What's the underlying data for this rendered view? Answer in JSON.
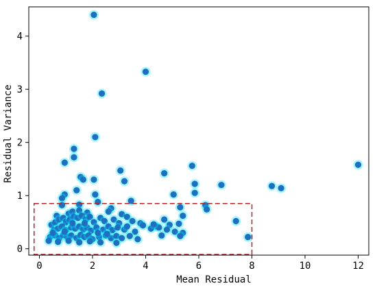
{
  "chart_data": {
    "type": "scatter",
    "xlabel": "Mean Residual",
    "ylabel": "Residual Variance",
    "xlim": [
      -0.4,
      12.4
    ],
    "ylim": [
      -0.12,
      4.55
    ],
    "xticks": [
      0,
      2,
      4,
      6,
      8,
      10,
      12
    ],
    "yticks": [
      0,
      1,
      2,
      3,
      4
    ],
    "grid": false,
    "marker_color": "#1f6fbf",
    "highlight_color": "#00e5ff",
    "region_color": "#b22222",
    "highlight_region": {
      "x": [
        -0.2,
        8.0
      ],
      "y": [
        -0.12,
        0.85
      ],
      "style": "dashed"
    },
    "points": [
      {
        "x": 2.05,
        "y": 4.4
      },
      {
        "x": 4.0,
        "y": 3.33
      },
      {
        "x": 2.35,
        "y": 2.92
      },
      {
        "x": 2.1,
        "y": 2.1
      },
      {
        "x": 1.3,
        "y": 1.88
      },
      {
        "x": 1.3,
        "y": 1.72
      },
      {
        "x": 0.95,
        "y": 1.62
      },
      {
        "x": 12.0,
        "y": 1.58
      },
      {
        "x": 5.75,
        "y": 1.56
      },
      {
        "x": 3.05,
        "y": 1.47
      },
      {
        "x": 4.7,
        "y": 1.42
      },
      {
        "x": 1.55,
        "y": 1.35
      },
      {
        "x": 1.65,
        "y": 1.3
      },
      {
        "x": 2.05,
        "y": 1.3
      },
      {
        "x": 3.2,
        "y": 1.27
      },
      {
        "x": 5.85,
        "y": 1.22
      },
      {
        "x": 6.85,
        "y": 1.2
      },
      {
        "x": 8.75,
        "y": 1.18
      },
      {
        "x": 9.1,
        "y": 1.14
      },
      {
        "x": 1.4,
        "y": 1.1
      },
      {
        "x": 5.85,
        "y": 1.05
      },
      {
        "x": 0.95,
        "y": 1.02
      },
      {
        "x": 2.1,
        "y": 1.02
      },
      {
        "x": 5.05,
        "y": 1.02
      },
      {
        "x": 0.85,
        "y": 0.95
      },
      {
        "x": 3.45,
        "y": 0.9
      },
      {
        "x": 2.2,
        "y": 0.88
      },
      {
        "x": 6.25,
        "y": 0.82
      },
      {
        "x": 1.5,
        "y": 0.83
      },
      {
        "x": 0.85,
        "y": 0.82
      },
      {
        "x": 5.3,
        "y": 0.78
      },
      {
        "x": 2.7,
        "y": 0.76
      },
      {
        "x": 6.3,
        "y": 0.74
      },
      {
        "x": 0.65,
        "y": 0.62
      },
      {
        "x": 1.1,
        "y": 0.66
      },
      {
        "x": 1.25,
        "y": 0.7
      },
      {
        "x": 1.5,
        "y": 0.72
      },
      {
        "x": 1.8,
        "y": 0.68
      },
      {
        "x": 2.6,
        "y": 0.7
      },
      {
        "x": 3.1,
        "y": 0.65
      },
      {
        "x": 3.3,
        "y": 0.6
      },
      {
        "x": 4.7,
        "y": 0.55
      },
      {
        "x": 5.4,
        "y": 0.62
      },
      {
        "x": 7.4,
        "y": 0.52
      },
      {
        "x": 0.45,
        "y": 0.45
      },
      {
        "x": 0.6,
        "y": 0.5
      },
      {
        "x": 0.75,
        "y": 0.55
      },
      {
        "x": 0.9,
        "y": 0.58
      },
      {
        "x": 1.0,
        "y": 0.5
      },
      {
        "x": 1.15,
        "y": 0.55
      },
      {
        "x": 1.3,
        "y": 0.6
      },
      {
        "x": 1.45,
        "y": 0.58
      },
      {
        "x": 1.6,
        "y": 0.62
      },
      {
        "x": 1.75,
        "y": 0.55
      },
      {
        "x": 1.9,
        "y": 0.6
      },
      {
        "x": 2.05,
        "y": 0.5
      },
      {
        "x": 2.3,
        "y": 0.58
      },
      {
        "x": 2.45,
        "y": 0.52
      },
      {
        "x": 2.8,
        "y": 0.55
      },
      {
        "x": 3.0,
        "y": 0.48
      },
      {
        "x": 3.5,
        "y": 0.52
      },
      {
        "x": 3.8,
        "y": 0.48
      },
      {
        "x": 4.4,
        "y": 0.42
      },
      {
        "x": 4.9,
        "y": 0.45
      },
      {
        "x": 5.25,
        "y": 0.47
      },
      {
        "x": 0.55,
        "y": 0.35
      },
      {
        "x": 0.7,
        "y": 0.38
      },
      {
        "x": 0.85,
        "y": 0.42
      },
      {
        "x": 1.0,
        "y": 0.35
      },
      {
        "x": 1.2,
        "y": 0.4
      },
      {
        "x": 1.35,
        "y": 0.38
      },
      {
        "x": 1.5,
        "y": 0.42
      },
      {
        "x": 1.65,
        "y": 0.36
      },
      {
        "x": 1.8,
        "y": 0.4
      },
      {
        "x": 1.95,
        "y": 0.34
      },
      {
        "x": 2.15,
        "y": 0.4
      },
      {
        "x": 2.4,
        "y": 0.36
      },
      {
        "x": 2.6,
        "y": 0.42
      },
      {
        "x": 2.75,
        "y": 0.35
      },
      {
        "x": 2.95,
        "y": 0.4
      },
      {
        "x": 3.2,
        "y": 0.36
      },
      {
        "x": 3.6,
        "y": 0.32
      },
      {
        "x": 4.2,
        "y": 0.38
      },
      {
        "x": 4.5,
        "y": 0.4
      },
      {
        "x": 4.8,
        "y": 0.36
      },
      {
        "x": 5.1,
        "y": 0.32
      },
      {
        "x": 0.4,
        "y": 0.22
      },
      {
        "x": 0.6,
        "y": 0.25
      },
      {
        "x": 0.75,
        "y": 0.2
      },
      {
        "x": 0.9,
        "y": 0.26
      },
      {
        "x": 1.05,
        "y": 0.22
      },
      {
        "x": 1.2,
        "y": 0.25
      },
      {
        "x": 1.4,
        "y": 0.2
      },
      {
        "x": 1.55,
        "y": 0.26
      },
      {
        "x": 1.7,
        "y": 0.22
      },
      {
        "x": 1.85,
        "y": 0.25
      },
      {
        "x": 2.0,
        "y": 0.18
      },
      {
        "x": 2.25,
        "y": 0.22
      },
      {
        "x": 2.5,
        "y": 0.25
      },
      {
        "x": 2.7,
        "y": 0.2
      },
      {
        "x": 2.9,
        "y": 0.24
      },
      {
        "x": 3.1,
        "y": 0.2
      },
      {
        "x": 3.4,
        "y": 0.24
      },
      {
        "x": 3.7,
        "y": 0.18
      },
      {
        "x": 4.6,
        "y": 0.25
      },
      {
        "x": 5.4,
        "y": 0.3
      },
      {
        "x": 7.85,
        "y": 0.22
      },
      {
        "x": 0.35,
        "y": 0.15
      },
      {
        "x": 0.7,
        "y": 0.13
      },
      {
        "x": 1.1,
        "y": 0.15
      },
      {
        "x": 1.5,
        "y": 0.12
      },
      {
        "x": 1.9,
        "y": 0.14
      },
      {
        "x": 2.3,
        "y": 0.12
      },
      {
        "x": 2.9,
        "y": 0.11
      },
      {
        "x": 0.5,
        "y": 0.3
      },
      {
        "x": 0.95,
        "y": 0.32
      },
      {
        "x": 1.25,
        "y": 0.48
      },
      {
        "x": 1.7,
        "y": 0.48
      },
      {
        "x": 2.2,
        "y": 0.3
      },
      {
        "x": 2.55,
        "y": 0.28
      },
      {
        "x": 3.3,
        "y": 0.42
      },
      {
        "x": 3.9,
        "y": 0.44
      },
      {
        "x": 4.3,
        "y": 0.46
      },
      {
        "x": 5.3,
        "y": 0.24
      }
    ]
  }
}
